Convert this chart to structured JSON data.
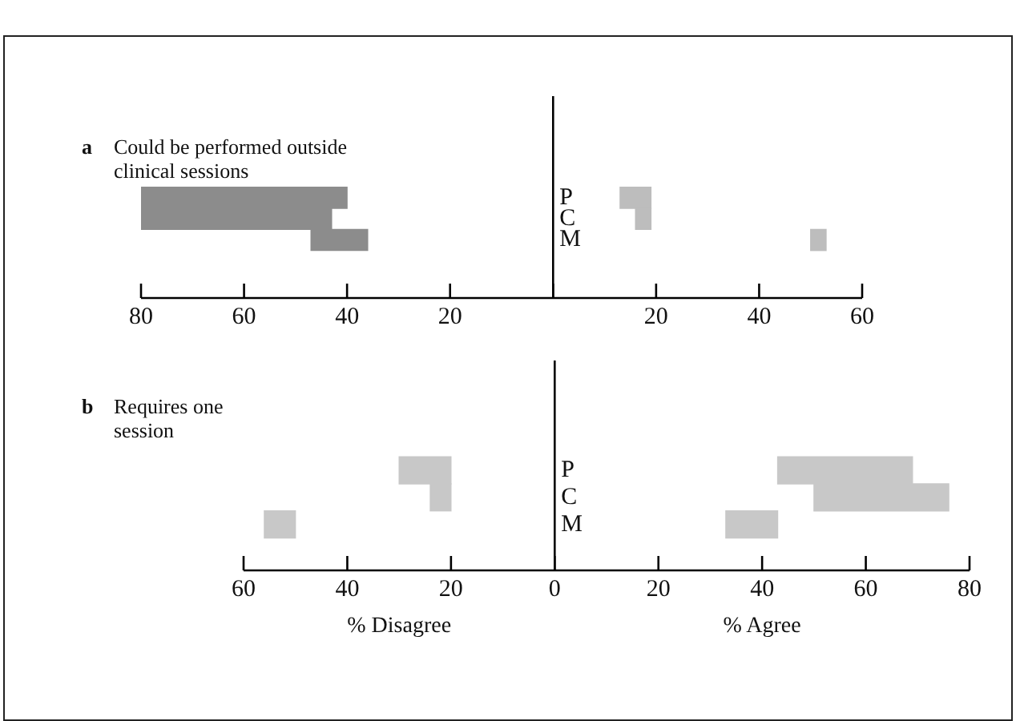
{
  "chart_data": [
    {
      "type": "bar",
      "orientation": "horizontal",
      "title": "a Could be performed outside clinical sessions",
      "categories": [
        "P",
        "C",
        "M"
      ],
      "series": [
        {
          "color": "#8c8c8c",
          "base": [
            -80,
            -80,
            -47
          ],
          "values": [
            40,
            37,
            11
          ]
        },
        {
          "color": "#bdbdbd",
          "base": [
            13,
            16,
            50
          ],
          "values": [
            6,
            3,
            3
          ]
        }
      ],
      "xlim": [
        -80,
        60
      ],
      "xticks": [
        {
          "value": -80,
          "label": "80"
        },
        {
          "value": -60,
          "label": "60"
        },
        {
          "value": -40,
          "label": "40"
        },
        {
          "value": -20,
          "label": "20"
        },
        {
          "value": 0,
          "label": null
        },
        20,
        40,
        60
      ],
      "grid": false,
      "legend": false
    },
    {
      "type": "bar",
      "orientation": "horizontal",
      "title": "b Requires one session",
      "categories": [
        "P",
        "C",
        "M"
      ],
      "series": [
        {
          "color": "#c8c8c8",
          "base": [
            -30,
            -24,
            -56
          ],
          "values": [
            10,
            4,
            6
          ]
        },
        {
          "color": "#c8c8c8",
          "base": [
            43,
            50,
            33
          ],
          "values": [
            26,
            26,
            10
          ]
        }
      ],
      "xlim": [
        -60,
        80
      ],
      "xticks": [
        {
          "value": -60,
          "label": "60"
        },
        {
          "value": -40,
          "label": "40"
        },
        {
          "value": -20,
          "label": "20"
        },
        0,
        20,
        40,
        60,
        80
      ],
      "annotations": [
        "% Disagree",
        "% Agree"
      ],
      "grid": false,
      "legend": false
    }
  ]
}
